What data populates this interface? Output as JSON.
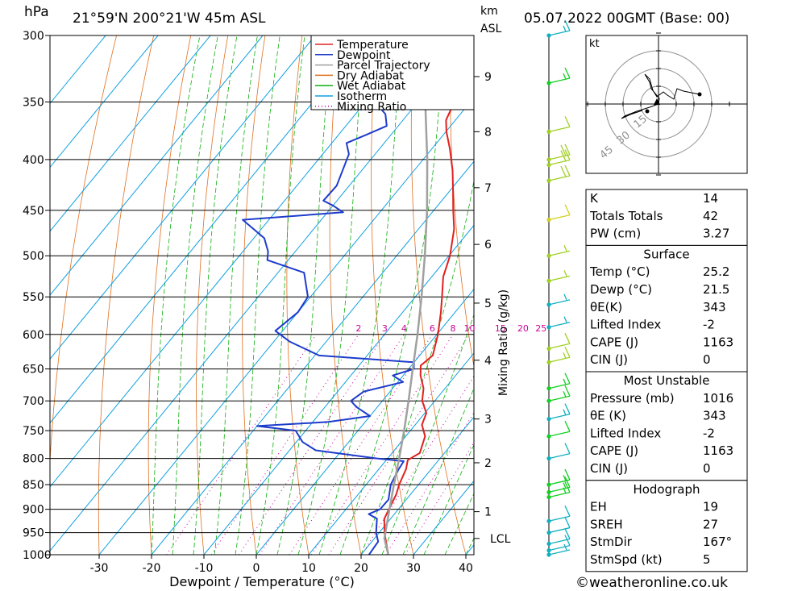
{
  "header": {
    "pressure_unit": "hPa",
    "location": "21°59'N  200°21'W  45m  ASL",
    "km_label_1": "km",
    "km_label_2": "ASL",
    "datetime": "05.07.2022  00GMT  (Base: 00)"
  },
  "legend": [
    {
      "label": "Temperature",
      "color": "#e02020",
      "dotted": false
    },
    {
      "label": "Dewpoint",
      "color": "#1e3ccc",
      "dotted": false
    },
    {
      "label": "Parcel Trajectory",
      "color": "#a0a0a0",
      "dotted": false
    },
    {
      "label": "Dry Adiabat",
      "color": "#e07020",
      "dotted": false
    },
    {
      "label": "Wet Adiabat",
      "color": "#10b010",
      "dotted": false
    },
    {
      "label": "Isotherm",
      "color": "#10a0e0",
      "dotted": false
    },
    {
      "label": "Mixing Ratio",
      "color": "#cc0099",
      "dotted": true
    }
  ],
  "chart_data": {
    "type": "line",
    "subtype": "skew-t log-p",
    "xlabel": "Dewpoint / Temperature (°C)",
    "ylabel": "hPa",
    "xlim": [
      -40,
      40
    ],
    "ylim": [
      1000,
      300
    ],
    "x_ticks": [
      -30,
      -20,
      -10,
      0,
      10,
      20,
      30,
      40
    ],
    "pressure_ticks": [
      300,
      350,
      400,
      450,
      500,
      550,
      600,
      650,
      700,
      750,
      800,
      850,
      900,
      950,
      1000
    ],
    "km_ticks": [
      {
        "label": "9",
        "p": 330
      },
      {
        "label": "8",
        "p": 375
      },
      {
        "label": "7",
        "p": 427
      },
      {
        "label": "6",
        "p": 487
      },
      {
        "label": "5",
        "p": 558
      },
      {
        "label": "4",
        "p": 637
      },
      {
        "label": "3",
        "p": 730
      },
      {
        "label": "2",
        "p": 808
      },
      {
        "label": "1",
        "p": 905
      },
      {
        "label": "LCL",
        "p": 963
      }
    ],
    "mixing_ratio_axis_label": "Mixing Ratio (g/kg)",
    "mixing_ratio_values": [
      1,
      2,
      3,
      4,
      6,
      8,
      10,
      15,
      20,
      25
    ],
    "mixing_ratio_labels": [
      "2",
      "3",
      "4",
      "6",
      "8",
      "10",
      "15",
      "20",
      "25"
    ],
    "grid": true,
    "legend_position": "top-right",
    "series": [
      {
        "name": "Temperature",
        "color": "#e02020",
        "points": [
          [
            1000,
            25.2
          ],
          [
            970,
            22.7
          ],
          [
            950,
            21
          ],
          [
            920,
            18.8
          ],
          [
            900,
            18.2
          ],
          [
            870,
            17.3
          ],
          [
            850,
            16.3
          ],
          [
            820,
            15.2
          ],
          [
            803,
            14.1
          ],
          [
            790,
            15.3
          ],
          [
            760,
            13.7
          ],
          [
            740,
            11.3
          ],
          [
            720,
            10.3
          ],
          [
            700,
            7.6
          ],
          [
            680,
            5.9
          ],
          [
            660,
            3.3
          ],
          [
            645,
            1.8
          ],
          [
            630,
            2.5
          ],
          [
            600,
            0.2
          ],
          [
            570,
            -2.7
          ],
          [
            550,
            -4.9
          ],
          [
            525,
            -7.8
          ],
          [
            500,
            -9.8
          ],
          [
            470,
            -13.2
          ],
          [
            450,
            -16.3
          ],
          [
            430,
            -19.4
          ],
          [
            410,
            -22.7
          ],
          [
            390,
            -26.6
          ],
          [
            375,
            -29.9
          ],
          [
            365,
            -31.8
          ],
          [
            355,
            -32.6
          ],
          [
            345,
            -35
          ],
          [
            330,
            -38.2
          ],
          [
            320,
            -41.3
          ],
          [
            310,
            -44.5
          ],
          [
            300,
            -47.1
          ]
        ]
      },
      {
        "name": "Dewpoint",
        "color": "#1e3ccc",
        "points": [
          [
            1000,
            21.5
          ],
          [
            970,
            21.2
          ],
          [
            950,
            19.4
          ],
          [
            920,
            17.4
          ],
          [
            910,
            15.1
          ],
          [
            900,
            16.5
          ],
          [
            880,
            16.6
          ],
          [
            850,
            14.7
          ],
          [
            820,
            13.8
          ],
          [
            805,
            13.5
          ],
          [
            800,
            8
          ],
          [
            785,
            -5
          ],
          [
            770,
            -8.8
          ],
          [
            750,
            -11.9
          ],
          [
            742,
            -20
          ],
          [
            735,
            -7
          ],
          [
            725,
            0
          ],
          [
            710,
            -4
          ],
          [
            700,
            -6
          ],
          [
            685,
            -5
          ],
          [
            670,
            1
          ],
          [
            660,
            -2
          ],
          [
            650,
            1
          ],
          [
            640,
            0
          ],
          [
            630,
            -19.2
          ],
          [
            610,
            -27
          ],
          [
            595,
            -31.4
          ],
          [
            570,
            -30
          ],
          [
            550,
            -30.5
          ],
          [
            520,
            -35
          ],
          [
            505,
            -44
          ],
          [
            495,
            -45.2
          ],
          [
            480,
            -48
          ],
          [
            460,
            -55
          ],
          [
            452,
            -37
          ],
          [
            445,
            -40
          ],
          [
            440,
            -42.6
          ],
          [
            425,
            -42.4
          ],
          [
            395,
            -45
          ],
          [
            385,
            -47.2
          ],
          [
            378,
            -44.8
          ],
          [
            370,
            -42.2
          ],
          [
            360,
            -44.3
          ],
          [
            350,
            -48.2
          ],
          [
            330,
            -54
          ],
          [
            310,
            -56.5
          ],
          [
            300,
            -60
          ]
        ]
      },
      {
        "name": "Parcel Trajectory",
        "color": "#a0a0a0",
        "points": [
          [
            1000,
            25.2
          ],
          [
            963,
            21.9
          ],
          [
            900,
            18.3
          ],
          [
            850,
            15.3
          ],
          [
            800,
            12.2
          ],
          [
            750,
            8.8
          ],
          [
            700,
            5
          ],
          [
            650,
            0.8
          ],
          [
            600,
            -3.7
          ],
          [
            550,
            -8.8
          ],
          [
            500,
            -14.6
          ],
          [
            450,
            -21.3
          ],
          [
            400,
            -29.2
          ],
          [
            350,
            -38.6
          ],
          [
            300,
            -49.8
          ]
        ]
      }
    ]
  },
  "wind_barbs": [
    {
      "p": 1000,
      "color": "#10b0c0",
      "speed_kt": 5
    },
    {
      "p": 990,
      "color": "#10b0c0",
      "speed_kt": 10
    },
    {
      "p": 975,
      "color": "#10b0c0",
      "speed_kt": 10
    },
    {
      "p": 950,
      "color": "#10b0c0",
      "speed_kt": 10
    },
    {
      "p": 925,
      "color": "#10b0c0",
      "speed_kt": 10
    },
    {
      "p": 875,
      "color": "#10d020",
      "speed_kt": 15
    },
    {
      "p": 865,
      "color": "#10d020",
      "speed_kt": 15
    },
    {
      "p": 850,
      "color": "#10d020",
      "speed_kt": 15
    },
    {
      "p": 800,
      "color": "#10b0c0",
      "speed_kt": 10
    },
    {
      "p": 760,
      "color": "#10d020",
      "speed_kt": 10
    },
    {
      "p": 730,
      "color": "#10b0c0",
      "speed_kt": 15
    },
    {
      "p": 700,
      "color": "#10d020",
      "speed_kt": 15
    },
    {
      "p": 680,
      "color": "#10d020",
      "speed_kt": 15
    },
    {
      "p": 640,
      "color": "#a0d020",
      "speed_kt": 15
    },
    {
      "p": 620,
      "color": "#a0d020",
      "speed_kt": 10
    },
    {
      "p": 590,
      "color": "#10b0c0",
      "speed_kt": 5
    },
    {
      "p": 560,
      "color": "#10b0c0",
      "speed_kt": 5
    },
    {
      "p": 530,
      "color": "#a0d020",
      "speed_kt": 5
    },
    {
      "p": 500,
      "color": "#a0d020",
      "speed_kt": 5
    },
    {
      "p": 460,
      "color": "#d0d020",
      "speed_kt": 10
    },
    {
      "p": 420,
      "color": "#a0d020",
      "speed_kt": 20
    },
    {
      "p": 405,
      "color": "#a0d020",
      "speed_kt": 20
    },
    {
      "p": 400,
      "color": "#a0d020",
      "speed_kt": 20
    },
    {
      "p": 375,
      "color": "#a0d020",
      "speed_kt": 10
    },
    {
      "p": 335,
      "color": "#10d020",
      "speed_kt": 15
    },
    {
      "p": 300,
      "color": "#10b0c0",
      "speed_kt": 15
    }
  ],
  "hodograph": {
    "unit_label": "kt",
    "ring_labels": [
      "15",
      "30",
      "45"
    ]
  },
  "table": {
    "indices": [
      {
        "label": "K",
        "value": "14"
      },
      {
        "label": "Totals Totals",
        "value": "42"
      },
      {
        "label": "PW (cm)",
        "value": "3.27"
      }
    ],
    "surface": {
      "title": "Surface",
      "rows": [
        {
          "label": "Temp (°C)",
          "value": "25.2"
        },
        {
          "label": "Dewp (°C)",
          "value": "21.5"
        },
        {
          "label": "θE(K)",
          "value": "343"
        },
        {
          "label": "Lifted Index",
          "value": "-2"
        },
        {
          "label": "CAPE (J)",
          "value": "1163"
        },
        {
          "label": "CIN (J)",
          "value": "0"
        }
      ]
    },
    "most_unstable": {
      "title": "Most Unstable",
      "rows": [
        {
          "label": "Pressure (mb)",
          "value": "1016"
        },
        {
          "label": "θE (K)",
          "value": "343"
        },
        {
          "label": "Lifted Index",
          "value": "-2"
        },
        {
          "label": "CAPE (J)",
          "value": "1163"
        },
        {
          "label": "CIN (J)",
          "value": "0"
        }
      ]
    },
    "hodograph": {
      "title": "Hodograph",
      "rows": [
        {
          "label": "EH",
          "value": "19"
        },
        {
          "label": "SREH",
          "value": "27"
        },
        {
          "label": "StmDir",
          "value": "167°"
        },
        {
          "label": "StmSpd (kt)",
          "value": "5"
        }
      ]
    }
  },
  "footer": {
    "copyright": "©weatheronline.co.uk"
  }
}
